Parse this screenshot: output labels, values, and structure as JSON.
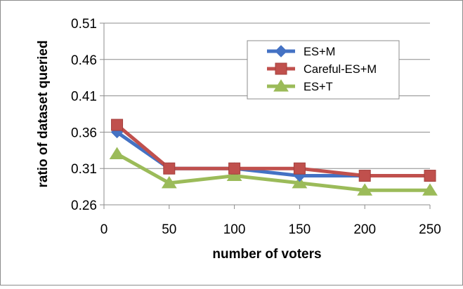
{
  "chart_data": {
    "type": "line",
    "title": "",
    "xlabel": "number of voters",
    "ylabel": "ratio of dataset queried",
    "xlim": [
      0,
      250
    ],
    "ylim": [
      0.26,
      0.51
    ],
    "x_ticks": [
      "0",
      "50",
      "100",
      "150",
      "200",
      "250"
    ],
    "y_ticks": [
      "0.51",
      "0.46",
      "0.41",
      "0.36",
      "0.31",
      "0.26"
    ],
    "grid": "horizontal",
    "legend_position": "top-right",
    "x": [
      10,
      50,
      100,
      150,
      200,
      250
    ],
    "series": [
      {
        "name": "ES+M",
        "color": "#4472c4",
        "marker": "diamond",
        "values": [
          0.36,
          0.31,
          0.31,
          0.3,
          0.3,
          0.3
        ]
      },
      {
        "name": "Careful-ES+M",
        "color": "#c0504d",
        "marker": "square",
        "values": [
          0.37,
          0.31,
          0.31,
          0.31,
          0.3,
          0.3
        ]
      },
      {
        "name": "ES+T",
        "color": "#9bbb59",
        "marker": "triangle",
        "values": [
          0.33,
          0.29,
          0.3,
          0.29,
          0.28,
          0.28
        ]
      }
    ]
  }
}
